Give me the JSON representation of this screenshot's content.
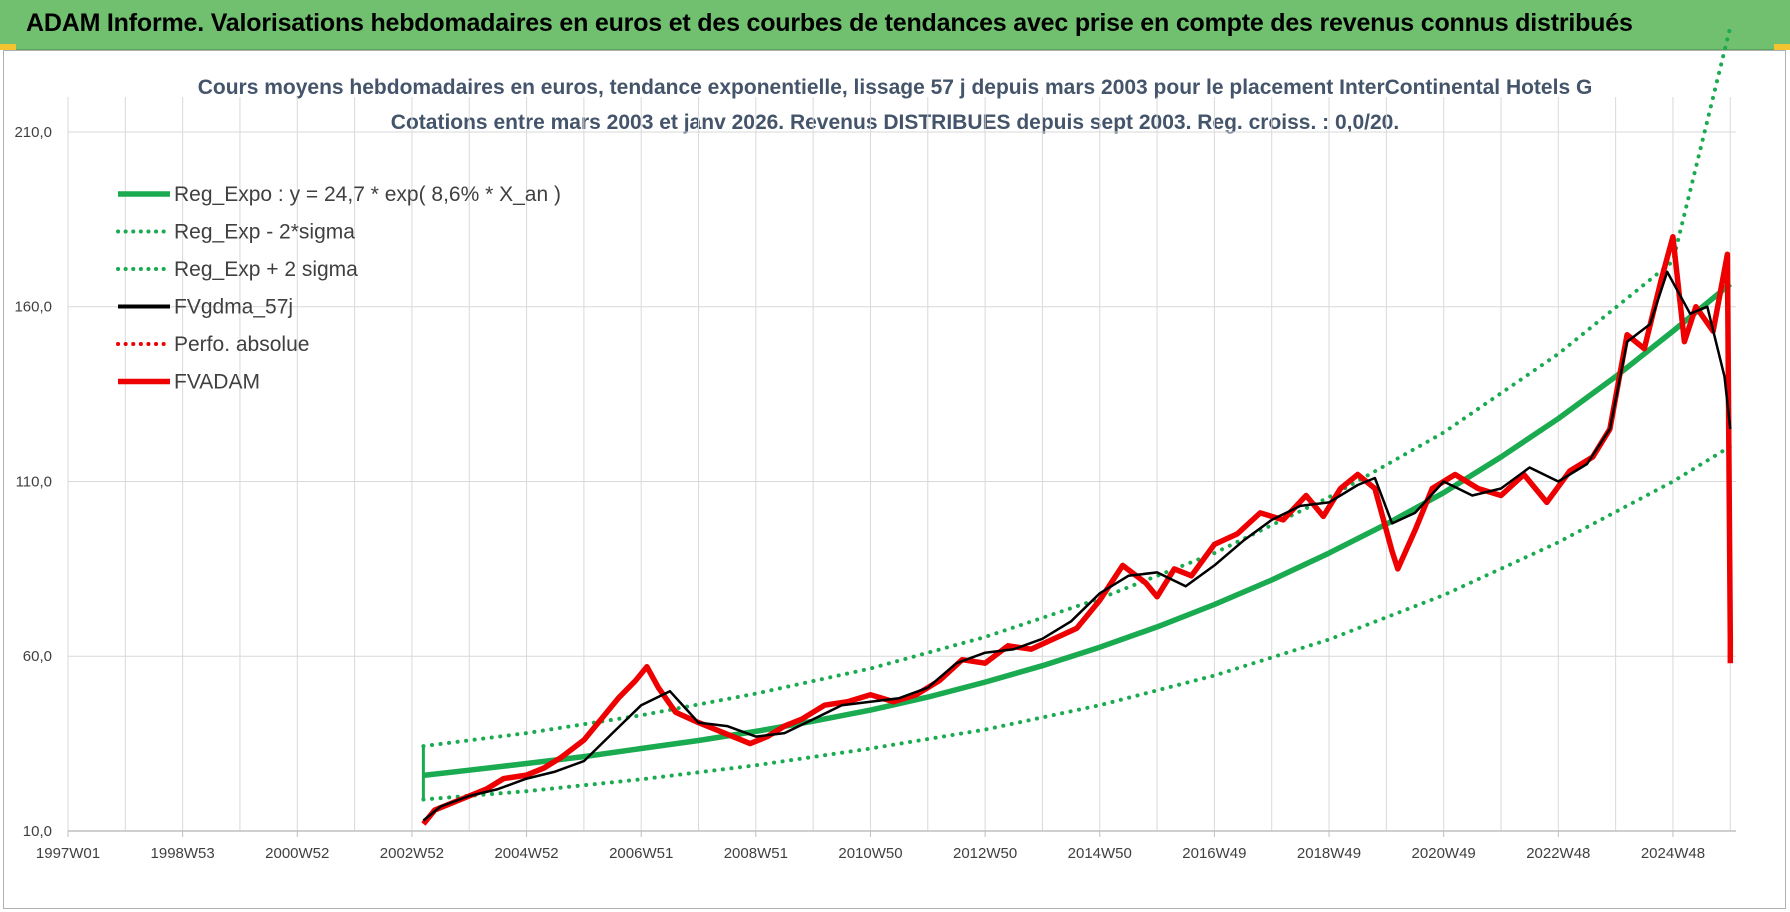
{
  "header": {
    "title": "ADAM Informe. Valorisations hebdomadaires en euros et des courbes de tendances avec prise en compte des revenus connus distribués"
  },
  "colors": {
    "banner": "#70c070",
    "trend": "#1aaa50",
    "fv57": "#000000",
    "fvadam": "#ee0000",
    "perfo": "#ee0000",
    "grid": "#d9d9d9"
  },
  "chart_data": {
    "type": "line",
    "title": "Cours moyens hebdomadaires en euros, tendance exponentielle, lissage 57 j depuis mars 2003 pour le placement InterContinental Hotels G",
    "subtitle": "Cotations entre mars 2003 et janv 2026. Revenus DISTRIBUES depuis sept 2003. Reg. croiss. : 0,0/20.",
    "xlabel": "",
    "ylabel": "",
    "x_range": [
      1997.0,
      2026.1
    ],
    "ylim": [
      10,
      220
    ],
    "yticks": [
      10,
      60,
      110,
      160,
      210
    ],
    "ytick_labels": [
      "10,0",
      "60,0",
      "110,0",
      "160,0",
      "210,0"
    ],
    "xticks": [
      {
        "x": 1997.0,
        "label": "1997W01"
      },
      {
        "x": 1999.0,
        "label": "1998W53"
      },
      {
        "x": 2001.0,
        "label": "2000W52"
      },
      {
        "x": 2003.0,
        "label": "2002W52"
      },
      {
        "x": 2005.0,
        "label": "2004W52"
      },
      {
        "x": 2007.0,
        "label": "2006W51"
      },
      {
        "x": 2009.0,
        "label": "2008W51"
      },
      {
        "x": 2011.0,
        "label": "2010W50"
      },
      {
        "x": 2013.0,
        "label": "2012W50"
      },
      {
        "x": 2015.0,
        "label": "2014W50"
      },
      {
        "x": 2017.0,
        "label": "2016W49"
      },
      {
        "x": 2019.0,
        "label": "2018W49"
      },
      {
        "x": 2021.0,
        "label": "2020W49"
      },
      {
        "x": 2023.0,
        "label": "2022W48"
      },
      {
        "x": 2025.0,
        "label": "2024W48"
      }
    ],
    "grid": true,
    "legend_position": "top-left",
    "series": [
      {
        "name": "Reg_Expo : y = 24,7 * exp( 8,6% *  X_an )",
        "style": "solid-thick",
        "color": "#1aaa50",
        "x": [
          2003.2,
          2004,
          2005,
          2006,
          2007,
          2008,
          2009,
          2010,
          2011,
          2012,
          2013,
          2014,
          2015,
          2016,
          2017,
          2018,
          2019,
          2020,
          2021,
          2022,
          2023,
          2024,
          2025,
          2026
        ],
        "values": [
          25.9,
          27.4,
          29.3,
          31.3,
          33.6,
          35.9,
          38.5,
          41.4,
          44.6,
          48.3,
          52.6,
          57.3,
          62.6,
          68.4,
          74.8,
          81.8,
          89.5,
          97.8,
          106.8,
          117.0,
          128.0,
          140.0,
          153.0,
          166.5
        ]
      },
      {
        "name": "Reg_Exp - 2*sigma",
        "style": "dotted",
        "color": "#1aaa50",
        "x": [
          2003.2,
          2005,
          2007,
          2009,
          2011,
          2013,
          2015,
          2017,
          2019,
          2021,
          2023,
          2025,
          2026
        ],
        "values": [
          19.0,
          21.4,
          24.8,
          28.8,
          33.6,
          39.0,
          46.0,
          54.5,
          64.8,
          77.5,
          92.6,
          110.0,
          120.0
        ]
      },
      {
        "name": "Reg_Exp + 2 sigma",
        "style": "dotted",
        "color": "#1aaa50",
        "x": [
          2003.2,
          2005,
          2007,
          2009,
          2011,
          2013,
          2015,
          2017,
          2019,
          2021,
          2023,
          2025,
          2026
        ],
        "values": [
          34.3,
          38.0,
          43.1,
          49.3,
          56.5,
          65.5,
          76.5,
          89.5,
          105.5,
          124.0,
          146.5,
          173.0,
          240.0
        ]
      },
      {
        "name": "FVgdma_57j",
        "style": "solid",
        "color": "#000000",
        "x": [
          2003.2,
          2003.5,
          2004,
          2004.5,
          2005,
          2005.5,
          2006,
          2006.5,
          2007,
          2007.5,
          2008,
          2008.5,
          2009,
          2009.5,
          2010,
          2010.5,
          2011,
          2011.5,
          2012,
          2012.5,
          2013,
          2013.5,
          2014,
          2014.5,
          2015,
          2015.5,
          2016,
          2016.5,
          2017,
          2017.5,
          2018,
          2018.5,
          2019,
          2019.5,
          2019.8,
          2020.1,
          2020.5,
          2021,
          2021.5,
          2022,
          2022.5,
          2023,
          2023.5,
          2023.9,
          2024.2,
          2024.6,
          2024.9,
          2025.3,
          2025.6,
          2025.9,
          2026.0
        ],
        "values": [
          13,
          17,
          20,
          22,
          25,
          27,
          30,
          38,
          46,
          50,
          41,
          40,
          37,
          38,
          42,
          46,
          47,
          48,
          51,
          58,
          61,
          62,
          65,
          70,
          78,
          83,
          84,
          80,
          86,
          93,
          99,
          103,
          104,
          109,
          111,
          98,
          101,
          110,
          106,
          108,
          114,
          110,
          115,
          125,
          150,
          155,
          170,
          158,
          160,
          140,
          125
        ]
      },
      {
        "name": "Perfo. absolue",
        "style": "dotted",
        "color": "#ee0000",
        "x": [],
        "values": []
      },
      {
        "name": "FVADAM",
        "style": "solid-thick",
        "color": "#ee0000",
        "x": [
          2003.2,
          2003.4,
          2003.7,
          2004,
          2004.3,
          2004.6,
          2005,
          2005.3,
          2005.6,
          2006,
          2006.3,
          2006.6,
          2006.9,
          2007.1,
          2007.3,
          2007.6,
          2008,
          2008.3,
          2008.6,
          2008.9,
          2009.2,
          2009.5,
          2009.8,
          2010.2,
          2010.6,
          2011,
          2011.4,
          2011.8,
          2012.2,
          2012.6,
          2013,
          2013.4,
          2013.8,
          2014.2,
          2014.6,
          2015,
          2015.4,
          2015.8,
          2016,
          2016.3,
          2016.6,
          2017,
          2017.4,
          2017.8,
          2018.2,
          2018.6,
          2018.9,
          2019.2,
          2019.5,
          2019.8,
          2020.1,
          2020.2,
          2020.5,
          2020.8,
          2021.2,
          2021.6,
          2022,
          2022.4,
          2022.8,
          2023.2,
          2023.6,
          2023.9,
          2024.2,
          2024.5,
          2024.8,
          2025.0,
          2025.2,
          2025.4,
          2025.7,
          2025.95,
          2026.0,
          2026.0
        ],
        "values": [
          12,
          16,
          18,
          20,
          22,
          25,
          26,
          28,
          31,
          36,
          42,
          48,
          53,
          57,
          51,
          44,
          41,
          39,
          37,
          35,
          37,
          40,
          42,
          46,
          47,
          49,
          47,
          49,
          53,
          59,
          58,
          63,
          62,
          65,
          68,
          76,
          86,
          81,
          77,
          85,
          83,
          92,
          95,
          101,
          99,
          106,
          100,
          108,
          112,
          108,
          90,
          85,
          96,
          108,
          112,
          108,
          106,
          112,
          104,
          113,
          117,
          125,
          152,
          148,
          168,
          180,
          150,
          160,
          153,
          175,
          65,
          58
        ]
      }
    ]
  }
}
